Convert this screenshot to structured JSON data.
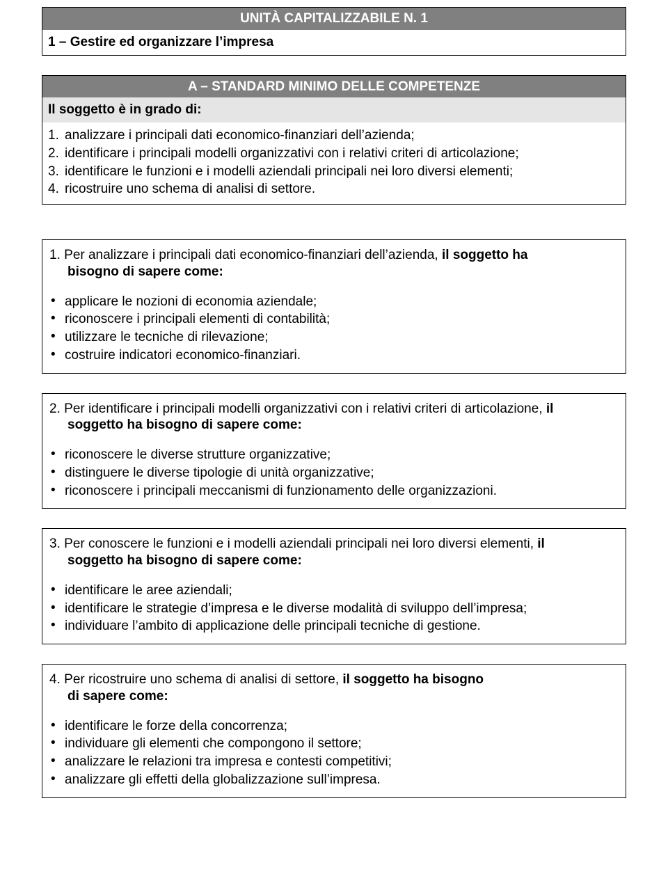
{
  "header": {
    "title": "UNITÀ CAPITALIZZABILE N. 1",
    "subtitle": "1 – Gestire ed organizzare l’impresa"
  },
  "banner": "A – STANDARD MINIMO DELLE COMPETENZE",
  "intro": "Il soggetto è in grado di:",
  "overview": [
    {
      "n": "1.",
      "text": "analizzare i principali dati economico-finanziari dell’azienda;"
    },
    {
      "n": "2.",
      "text": "identificare i principali modelli organizzativi con i relativi criteri di articolazione;"
    },
    {
      "n": "3.",
      "text": "identificare le funzioni e i modelli aziendali principali nei loro diversi elementi;"
    },
    {
      "n": "4.",
      "text": "ricostruire uno schema di analisi di settore."
    }
  ],
  "sections": [
    {
      "num": "1.",
      "lead": "Per analizzare i principali dati economico-finanziari dell’azienda, ",
      "bold1": "il soggetto ha",
      "bold2": "bisogno di sapere come:",
      "bullets": [
        "applicare le nozioni di economia aziendale;",
        "riconoscere i principali elementi di contabilità;",
        "utilizzare le tecniche di rilevazione;",
        "costruire indicatori economico-finanziari."
      ]
    },
    {
      "num": "2.",
      "lead": "Per identificare i principali modelli organizzativi con i relativi criteri di articolazione, ",
      "bold1": "il",
      "bold2": "soggetto ha bisogno di sapere come:",
      "bullets": [
        "riconoscere le diverse strutture organizzative;",
        "distinguere le diverse tipologie di unità organizzative;",
        "riconoscere i principali meccanismi di funzionamento delle organizzazioni."
      ]
    },
    {
      "num": "3.",
      "lead": "Per conoscere le funzioni e i modelli aziendali principali nei loro diversi elementi, ",
      "bold1": "il",
      "bold2": "soggetto ha bisogno di sapere come:",
      "bullets": [
        "identificare le aree aziendali;",
        "identificare le strategie d’impresa e le diverse modalità di sviluppo dell’impresa;",
        "individuare l’ambito di applicazione delle principali tecniche di gestione."
      ]
    },
    {
      "num": "4.",
      "lead": "Per ricostruire uno schema di analisi di settore, ",
      "bold1": "il soggetto ha bisogno",
      "bold2": "di sapere come:",
      "bullets": [
        "identificare le forze della concorrenza;",
        "individuare gli elementi che compongono il settore;",
        "analizzare le relazioni tra impresa e contesti competitivi;",
        "analizzare gli effetti della globalizzazione sull’impresa."
      ]
    }
  ]
}
